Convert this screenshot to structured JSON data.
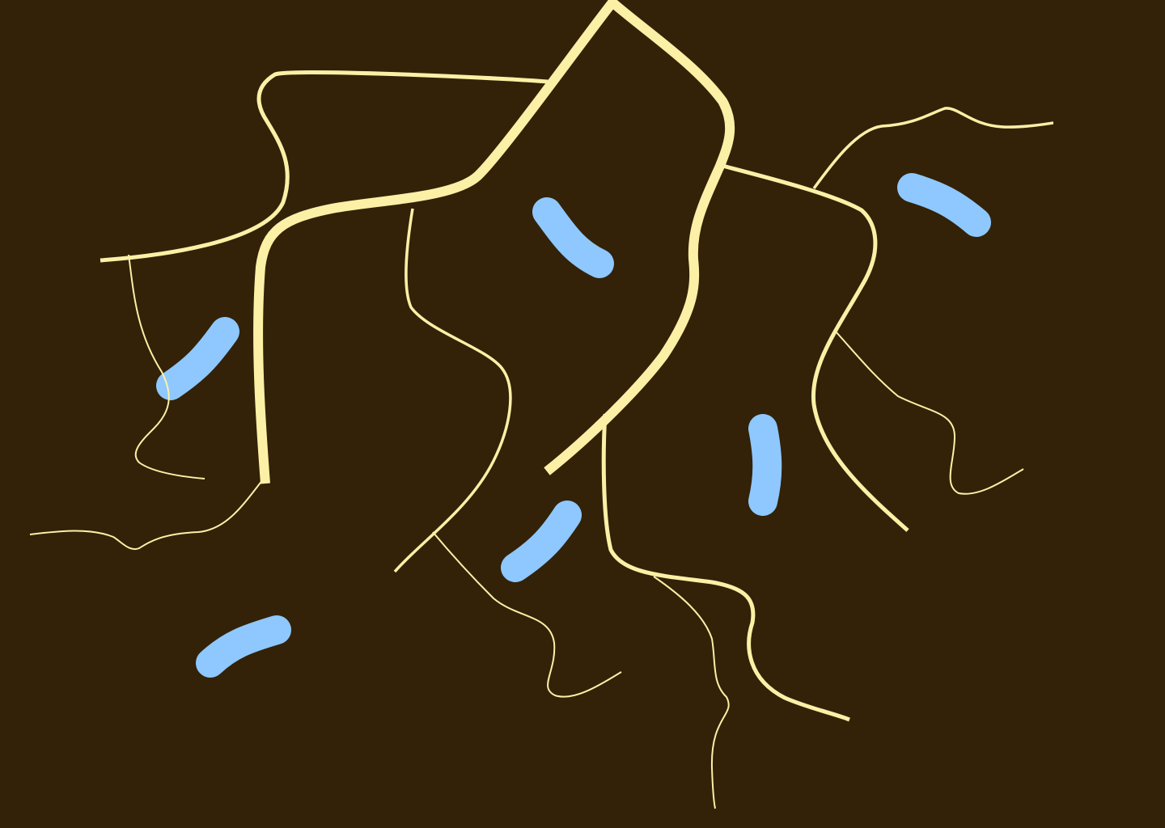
{
  "map": {
    "background_color": "#332208",
    "road_color": "#fcf0a6",
    "water_color": "#8ec8ff"
  }
}
